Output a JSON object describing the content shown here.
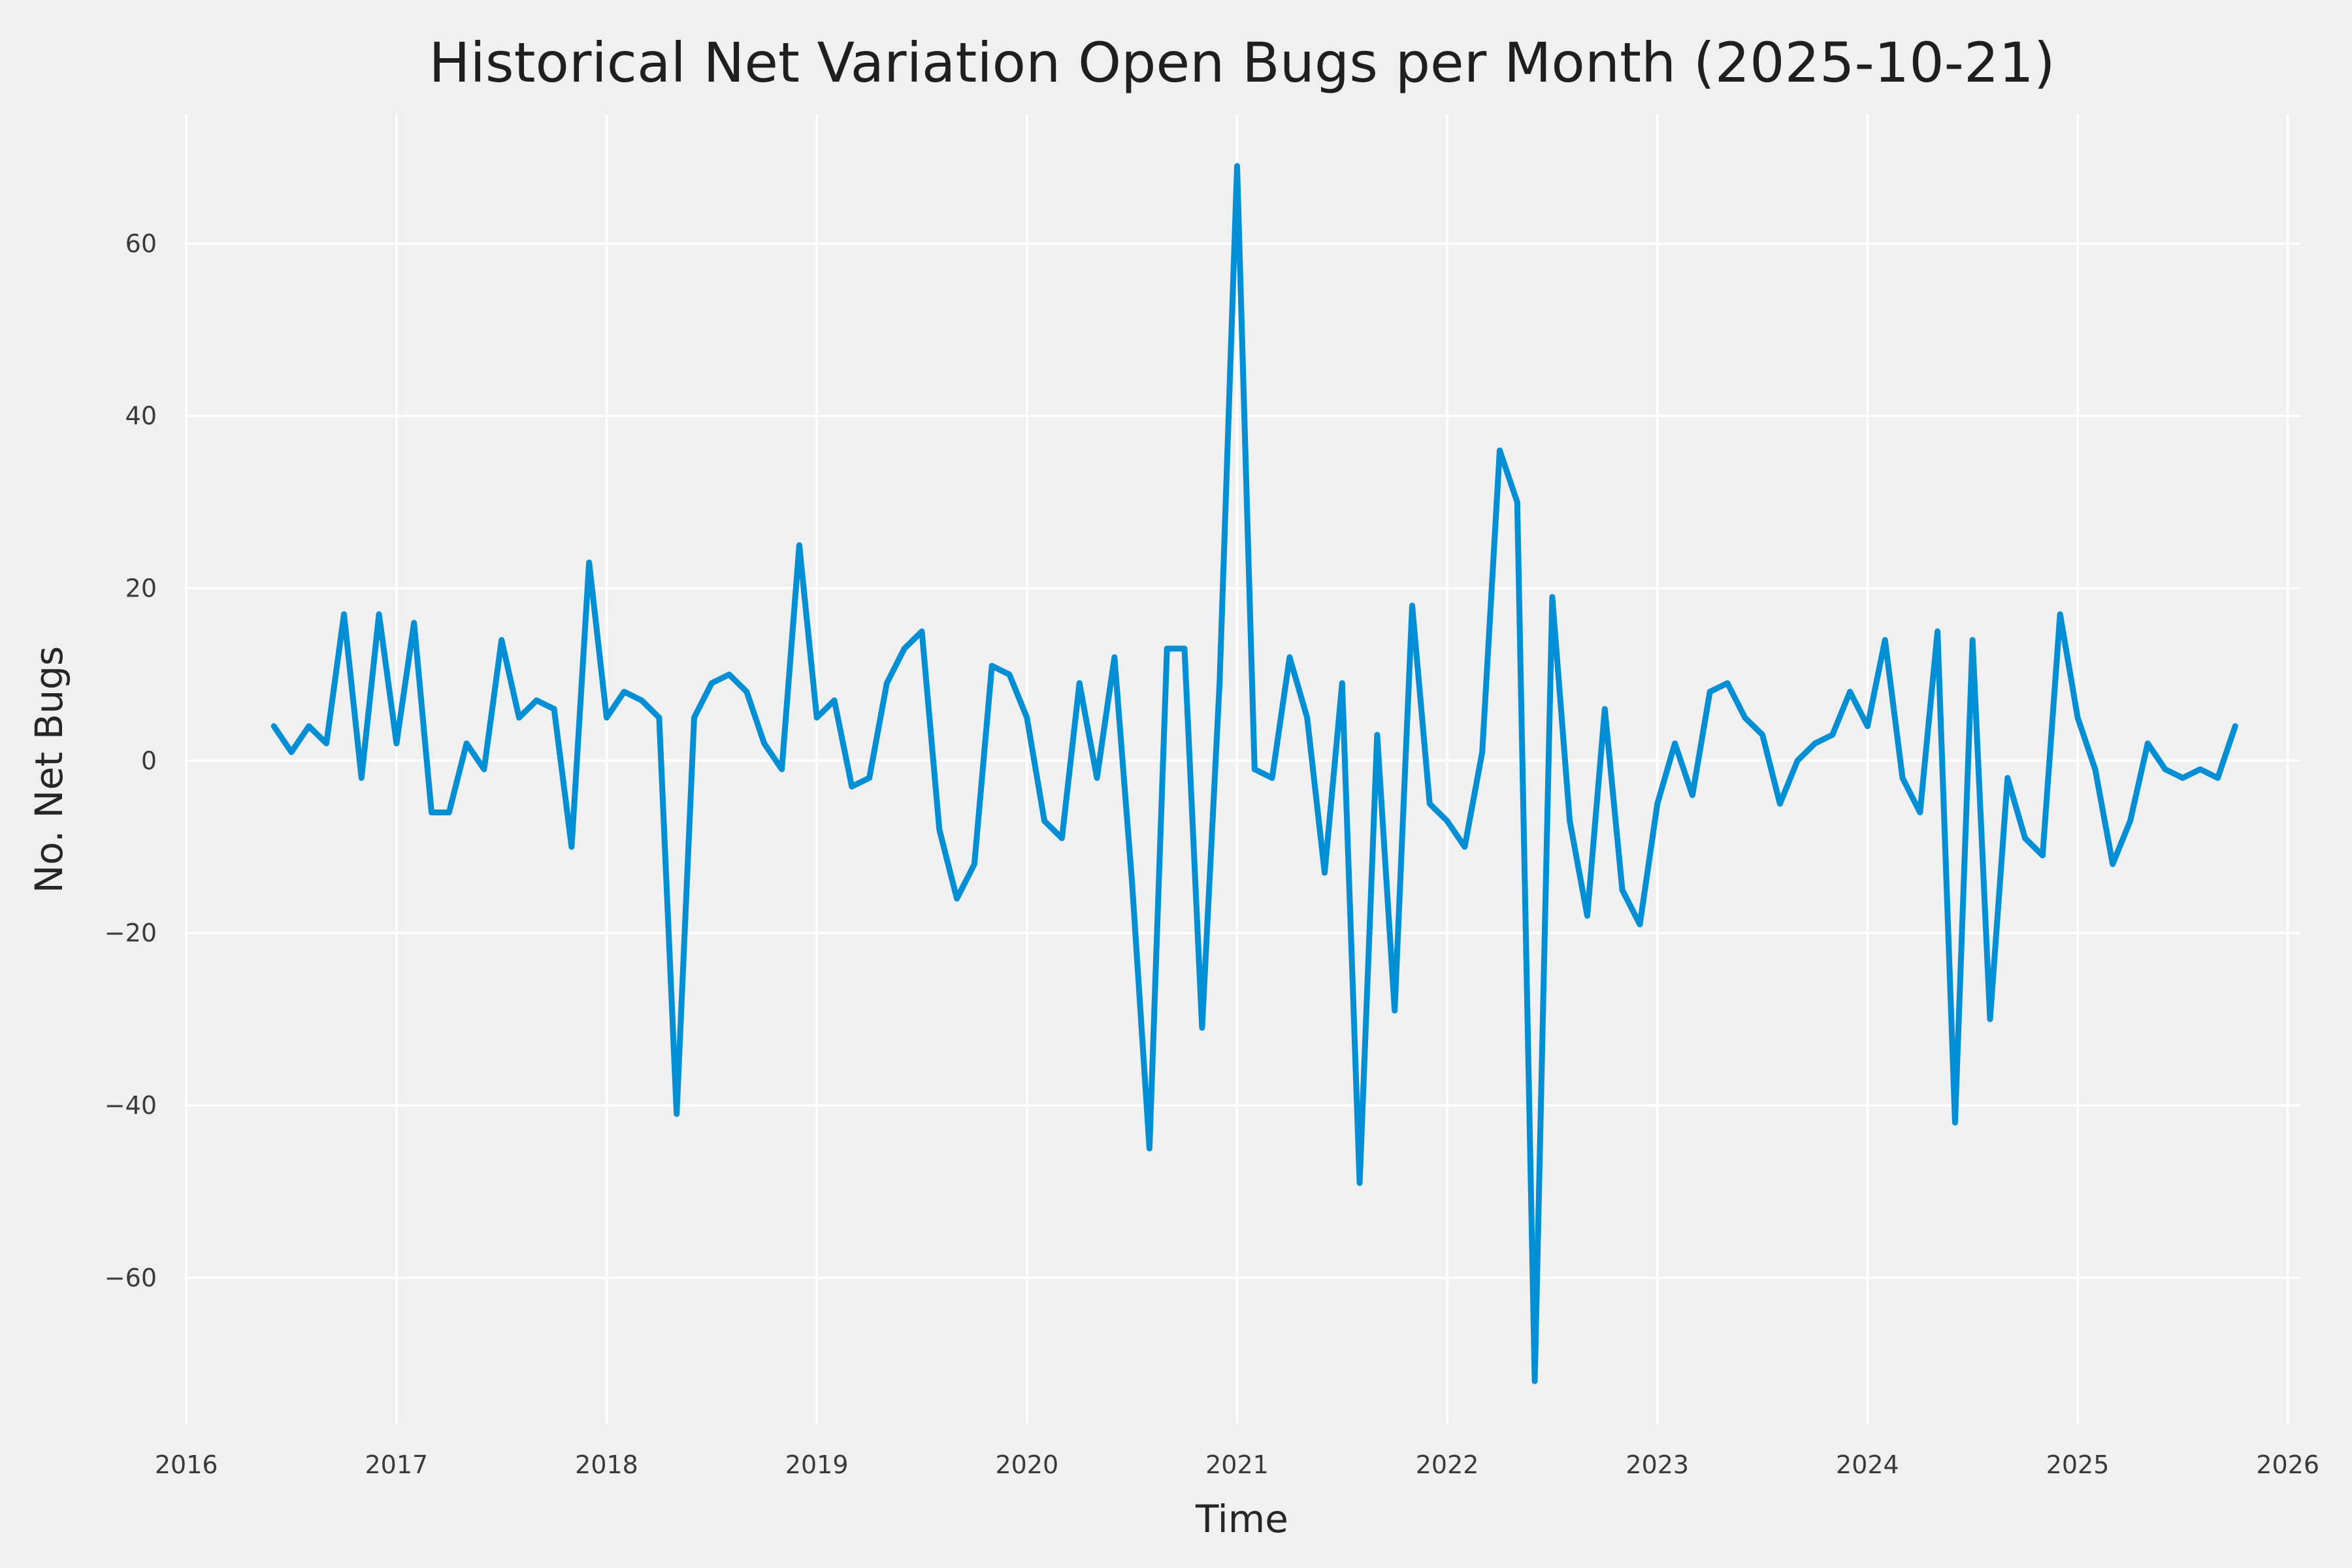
{
  "chart_data": {
    "type": "line",
    "title": "Historical Net Variation Open Bugs per Month (2025-10-21)",
    "xlabel": "Time",
    "ylabel": "No. Net Bugs",
    "legend": false,
    "grid": true,
    "background_color": "#f0f0f0",
    "grid_color": "#ffffff",
    "line_color": "#008fd5",
    "xlim": [
      2015.99,
      2026.06
    ],
    "ylim": [
      -77,
      75
    ],
    "x_ticks": [
      2016,
      2017,
      2018,
      2019,
      2020,
      2021,
      2022,
      2023,
      2024,
      2025,
      2026
    ],
    "y_ticks": [
      -60,
      -40,
      -20,
      0,
      20,
      40,
      60
    ],
    "series": [
      {
        "name": "Net variation of open bugs per month",
        "x": [
          "2016-06",
          "2016-07",
          "2016-08",
          "2016-09",
          "2016-10",
          "2016-11",
          "2016-12",
          "2017-01",
          "2017-02",
          "2017-03",
          "2017-04",
          "2017-05",
          "2017-06",
          "2017-07",
          "2017-08",
          "2017-09",
          "2017-10",
          "2017-11",
          "2017-12",
          "2018-01",
          "2018-02",
          "2018-03",
          "2018-04",
          "2018-05",
          "2018-06",
          "2018-07",
          "2018-08",
          "2018-09",
          "2018-10",
          "2018-11",
          "2018-12",
          "2019-01",
          "2019-02",
          "2019-03",
          "2019-04",
          "2019-05",
          "2019-06",
          "2019-07",
          "2019-08",
          "2019-09",
          "2019-10",
          "2019-11",
          "2019-12",
          "2020-01",
          "2020-02",
          "2020-03",
          "2020-04",
          "2020-05",
          "2020-06",
          "2020-07",
          "2020-08",
          "2020-09",
          "2020-10",
          "2020-11",
          "2020-12",
          "2021-01",
          "2021-02",
          "2021-03",
          "2021-04",
          "2021-05",
          "2021-06",
          "2021-07",
          "2021-08",
          "2021-09",
          "2021-10",
          "2021-11",
          "2021-12",
          "2022-01",
          "2022-02",
          "2022-03",
          "2022-04",
          "2022-05",
          "2022-06",
          "2022-07",
          "2022-08",
          "2022-09",
          "2022-10",
          "2022-11",
          "2022-12",
          "2023-01",
          "2023-02",
          "2023-03",
          "2023-04",
          "2023-05",
          "2023-06",
          "2023-07",
          "2023-08",
          "2023-09",
          "2023-10",
          "2023-11",
          "2023-12",
          "2024-01",
          "2024-02",
          "2024-03",
          "2024-04",
          "2024-05",
          "2024-06",
          "2024-07",
          "2024-08",
          "2024-09",
          "2024-10",
          "2024-11",
          "2024-12",
          "2025-01",
          "2025-02",
          "2025-03",
          "2025-04",
          "2025-05",
          "2025-06",
          "2025-07",
          "2025-08",
          "2025-09",
          "2025-10"
        ],
        "y": [
          4,
          1,
          4,
          2,
          17,
          -2,
          17,
          2,
          16,
          -6,
          -6,
          2,
          -1,
          14,
          5,
          7,
          6,
          -10,
          23,
          5,
          8,
          7,
          5,
          -41,
          5,
          9,
          10,
          8,
          2,
          -1,
          25,
          5,
          7,
          -3,
          -2,
          9,
          13,
          15,
          -8,
          -16,
          -12,
          11,
          10,
          5,
          -7,
          -9,
          9,
          -2,
          12,
          -14,
          -45,
          13,
          13,
          -31,
          9,
          69,
          -1,
          -2,
          12,
          5,
          -13,
          9,
          -49,
          3,
          -29,
          18,
          -5,
          -7,
          -10,
          1,
          36,
          30,
          -72,
          19,
          -7,
          -18,
          6,
          -15,
          -19,
          -5,
          2,
          -4,
          8,
          9,
          5,
          3,
          -5,
          0,
          2,
          3,
          8,
          4,
          14,
          -2,
          -6,
          15,
          -42,
          14,
          -30,
          -2,
          -9,
          -11,
          17,
          5,
          -1,
          -12,
          -7,
          2,
          -1,
          -2,
          -1,
          -2,
          4
        ]
      }
    ]
  }
}
